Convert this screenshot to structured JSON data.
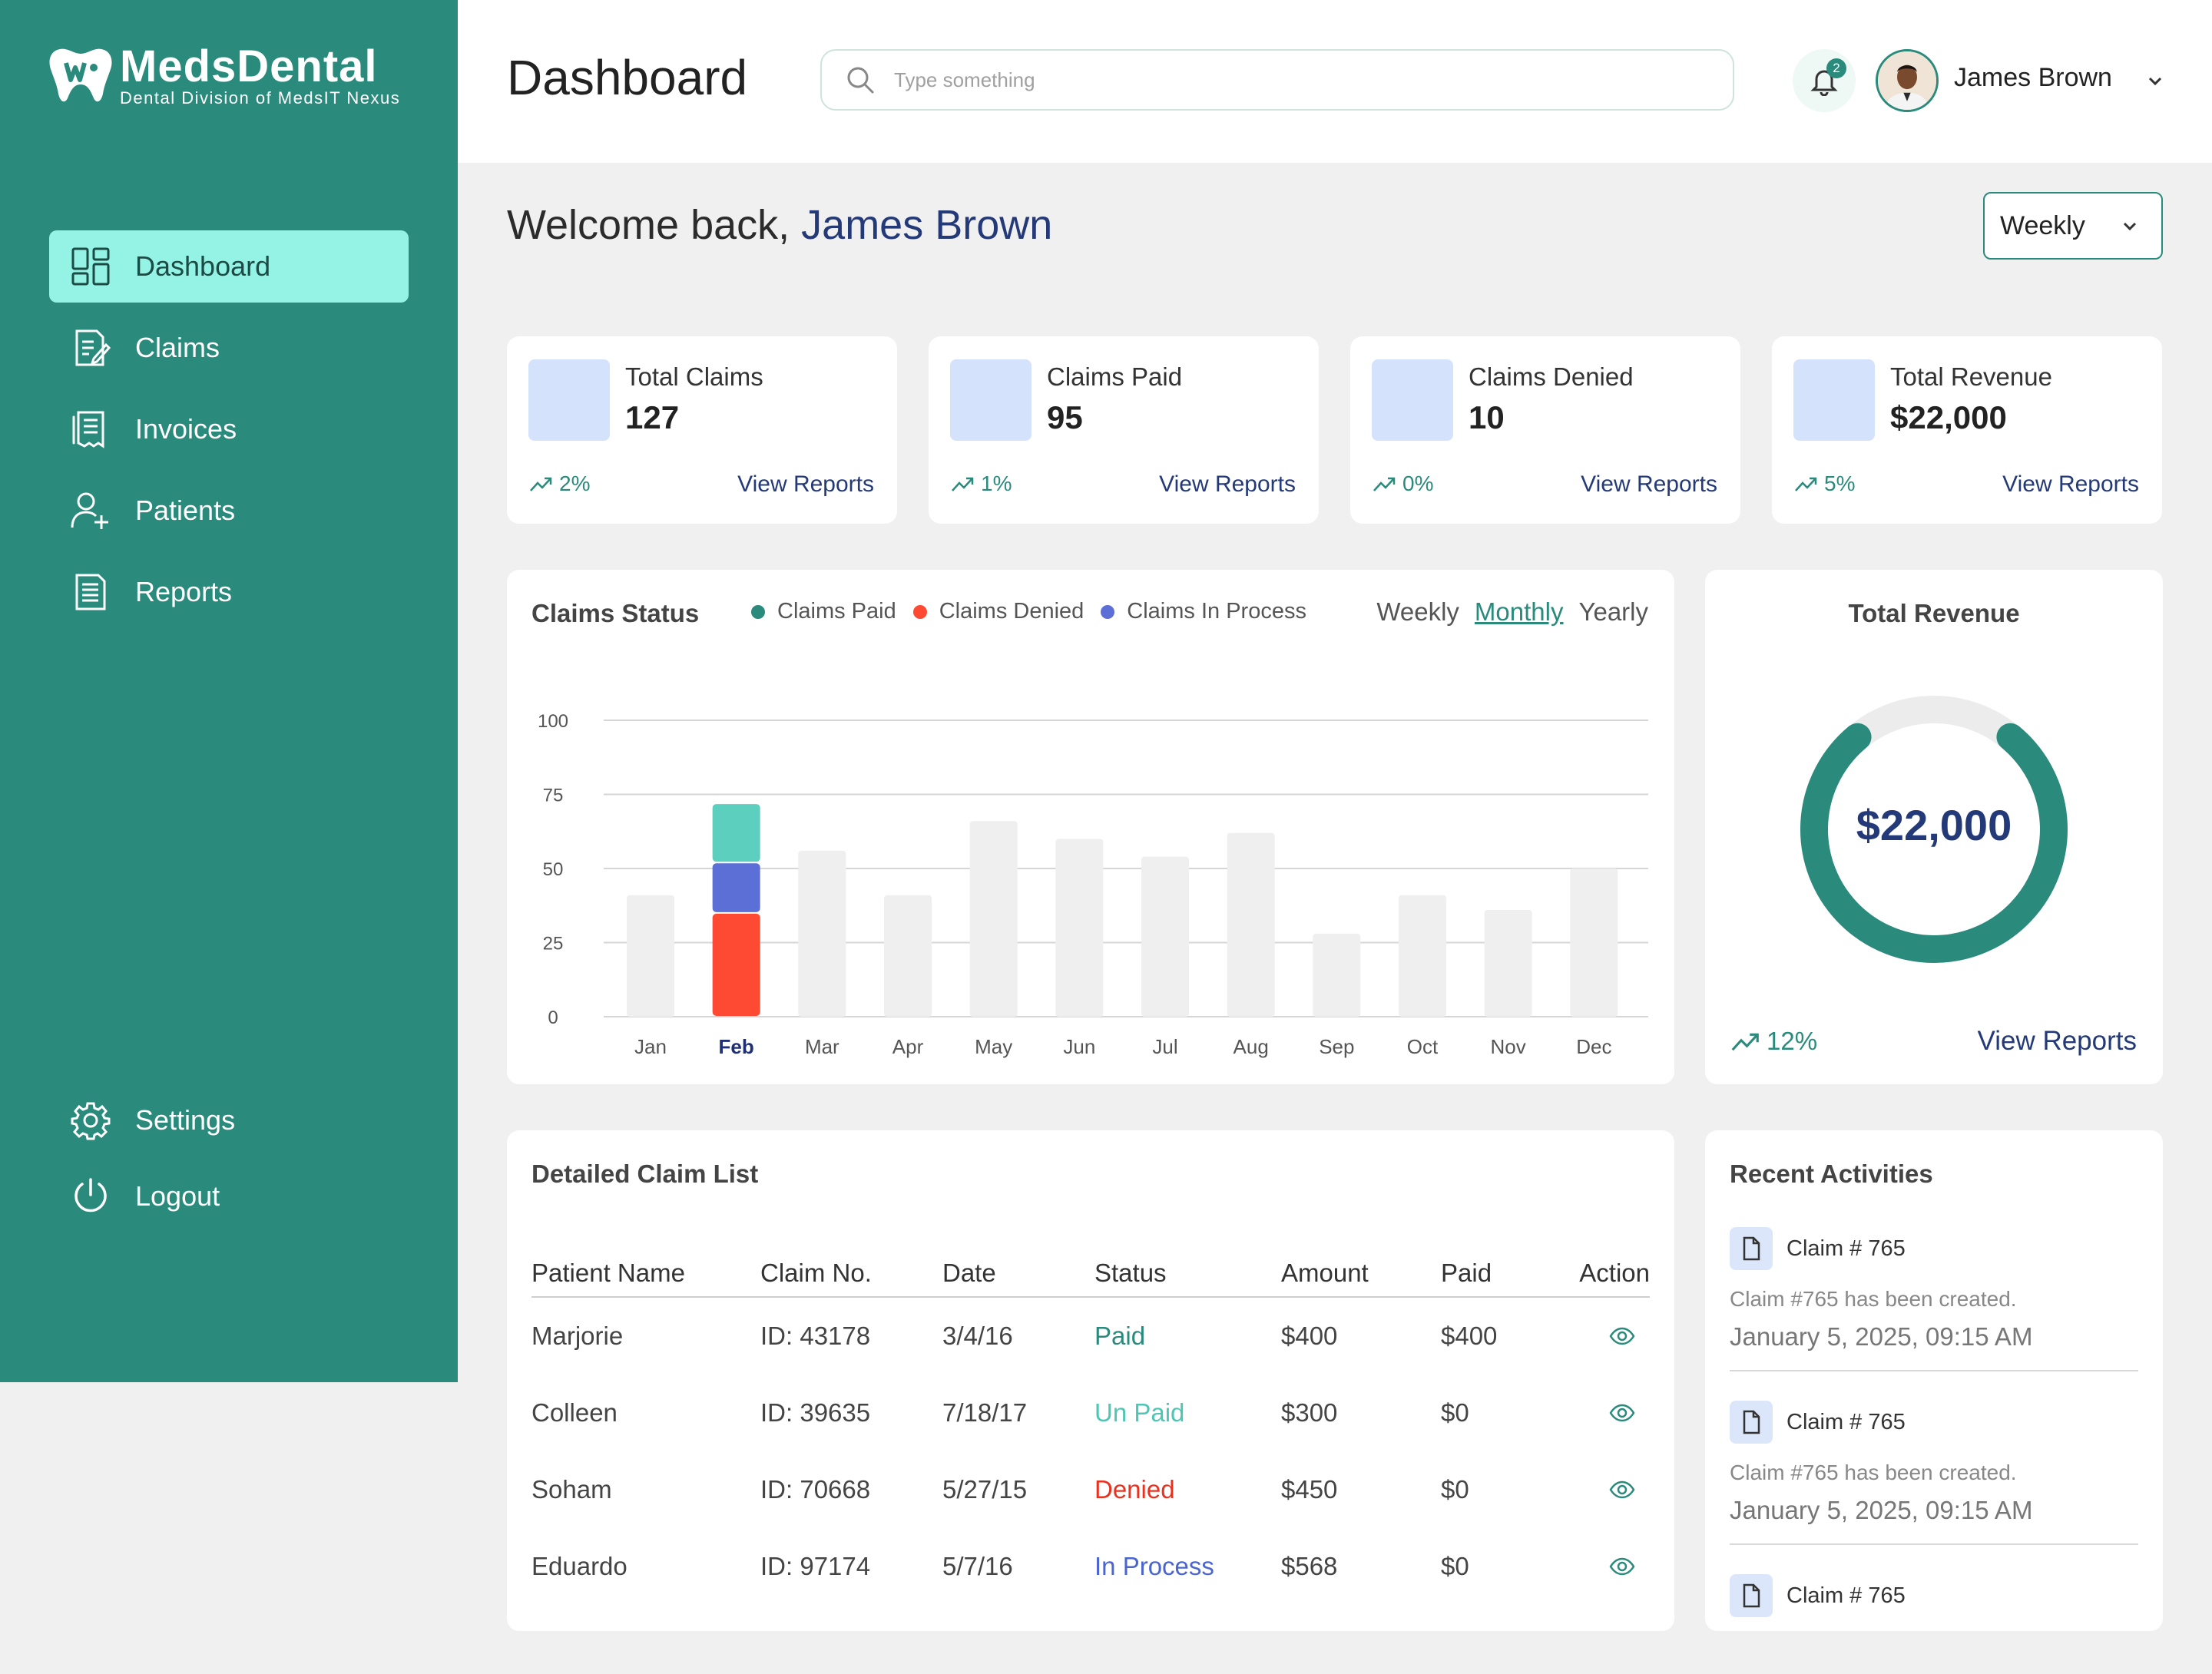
{
  "brand": {
    "name": "MedsDental",
    "tagline": "Dental Division of MedsIT Nexus"
  },
  "sidebar": {
    "items": [
      {
        "label": "Dashboard",
        "icon": "dashboard-icon",
        "active": true
      },
      {
        "label": "Claims",
        "icon": "claims-icon"
      },
      {
        "label": "Invoices",
        "icon": "invoices-icon"
      },
      {
        "label": "Patients",
        "icon": "patients-icon"
      },
      {
        "label": "Reports",
        "icon": "reports-icon"
      }
    ],
    "bottom": [
      {
        "label": "Settings",
        "icon": "gear-icon"
      },
      {
        "label": "Logout",
        "icon": "power-icon"
      }
    ]
  },
  "header": {
    "title": "Dashboard",
    "search_placeholder": "Type something",
    "notification_count": "2",
    "user_name": "James Brown"
  },
  "welcome": {
    "prefix": "Welcome back, ",
    "name": "James Brown"
  },
  "period": "Weekly",
  "stats": [
    {
      "label": "Total Claims",
      "value": "127",
      "trend": "2%",
      "link": "View Reports"
    },
    {
      "label": "Claims Paid",
      "value": "95",
      "trend": "1%",
      "link": "View Reports"
    },
    {
      "label": "Claims Denied",
      "value": "10",
      "trend": "0%",
      "link": "View Reports"
    },
    {
      "label": "Total Revenue",
      "value": "$22,000",
      "trend": "5%",
      "link": "View Reports"
    }
  ],
  "claims_status": {
    "title": "Claims Status",
    "legend": [
      "Claims Paid",
      "Claims Denied",
      "Claims In Process"
    ],
    "tabs": [
      "Weekly",
      "Monthly",
      "Yearly"
    ],
    "active_tab": "Monthly",
    "highlighted_month": "Feb"
  },
  "chart_data": {
    "type": "bar",
    "categories": [
      "Jan",
      "Feb",
      "Mar",
      "Apr",
      "May",
      "Jun",
      "Jul",
      "Aug",
      "Sep",
      "Oct",
      "Nov",
      "Dec"
    ],
    "values": [
      41,
      72,
      56,
      41,
      66,
      60,
      54,
      62,
      28,
      41,
      36,
      50
    ],
    "stacked_highlight": {
      "category": "Feb",
      "series": [
        {
          "name": "Claims Denied",
          "value": 35,
          "color": "#ff4a33"
        },
        {
          "name": "Claims In Process",
          "value": 17,
          "color": "#5b6fd6"
        },
        {
          "name": "Claims Paid",
          "value": 20,
          "color": "#5ccfbf"
        }
      ]
    },
    "yticks": [
      0,
      25,
      50,
      75,
      100
    ],
    "ylim": [
      0,
      100
    ],
    "grid": true,
    "legend_position": "top",
    "colors": {
      "paid": "#2a8a7c",
      "denied": "#ff4a33",
      "in_process": "#5b6fd6",
      "neutral_bar": "#efefef"
    }
  },
  "revenue": {
    "title": "Total Revenue",
    "value": "$22,000",
    "fraction": 0.78,
    "trend": "12%",
    "link": "View Reports"
  },
  "claim_list": {
    "title": "Detailed Claim List",
    "columns": [
      "Patient Name",
      "Claim No.",
      "Date",
      "Status",
      "Amount",
      "Paid",
      "Action"
    ],
    "rows": [
      {
        "name": "Marjorie",
        "claim": "ID: 43178",
        "date": "3/4/16",
        "status": "Paid",
        "status_color": "#2a8a7c",
        "amount": "$400",
        "paid": "$400"
      },
      {
        "name": "Colleen",
        "claim": "ID: 39635",
        "date": "7/18/17",
        "status": "Un Paid",
        "status_color": "#4fc6b4",
        "amount": "$300",
        "paid": "$0"
      },
      {
        "name": "Soham",
        "claim": "ID: 70668",
        "date": "5/27/15",
        "status": "Denied",
        "status_color": "#e8321f",
        "amount": "$450",
        "paid": "$0"
      },
      {
        "name": "Eduardo",
        "claim": "ID: 97174",
        "date": "5/7/16",
        "status": "In Process",
        "status_color": "#4a64d0",
        "amount": "$568",
        "paid": "$0"
      }
    ]
  },
  "activities": {
    "title": "Recent Activities",
    "items": [
      {
        "title": "Claim # 765",
        "desc": "Claim #765 has been created.",
        "time": "January 5, 2025, 09:15 AM"
      },
      {
        "title": "Claim # 765",
        "desc": "Claim #765 has been created.",
        "time": "January 5, 2025, 09:15 AM"
      },
      {
        "title": "Claim # 765",
        "desc": "",
        "time": ""
      }
    ]
  },
  "accent": "#2a8a7c"
}
